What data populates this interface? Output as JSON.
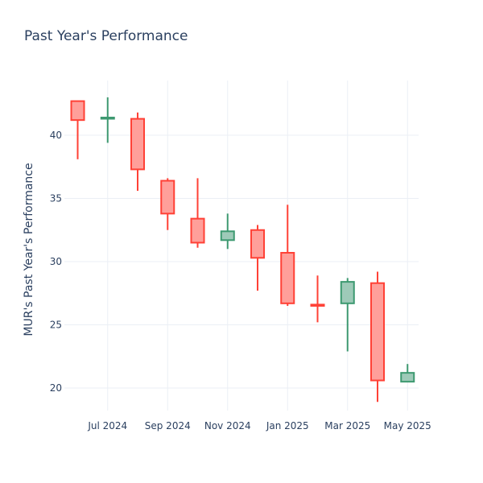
{
  "chart_data": {
    "type": "candlestick",
    "title": "Past Year's Performance",
    "xlabel": "",
    "ylabel": "MUR's Past Year's Performance",
    "ylim": [
      17.5,
      45
    ],
    "yticks": [
      20,
      25,
      30,
      35,
      40
    ],
    "xticks": [
      "Jul 2024",
      "Sep 2024",
      "Nov 2024",
      "Jan 2025",
      "Mar 2025",
      "May 2025"
    ],
    "grid": true,
    "legend": false,
    "colors": {
      "increasing_line": "#3d9970",
      "increasing_fill": "#9ecab8",
      "decreasing_line": "#ff4136",
      "decreasing_fill": "#ff9f9a",
      "grid": "#ebeff5",
      "text": "#2a3f5f"
    },
    "candles": [
      {
        "period": "2024-06",
        "open": 42.7,
        "high": 42.7,
        "low": 38.1,
        "close": 41.2
      },
      {
        "period": "2024-07",
        "open": 41.4,
        "high": 43.0,
        "low": 39.4,
        "close": 41.4
      },
      {
        "period": "2024-08",
        "open": 41.3,
        "high": 41.8,
        "low": 35.6,
        "close": 37.3
      },
      {
        "period": "2024-09",
        "open": 36.4,
        "high": 36.6,
        "low": 32.5,
        "close": 33.8
      },
      {
        "period": "2024-10",
        "open": 33.4,
        "high": 36.6,
        "low": 31.1,
        "close": 31.5
      },
      {
        "period": "2024-11",
        "open": 31.7,
        "high": 33.8,
        "low": 31.0,
        "close": 32.4
      },
      {
        "period": "2024-12",
        "open": 32.5,
        "high": 32.9,
        "low": 27.7,
        "close": 30.3
      },
      {
        "period": "2025-01",
        "open": 30.7,
        "high": 34.5,
        "low": 26.5,
        "close": 26.7
      },
      {
        "period": "2025-02",
        "open": 26.6,
        "high": 28.9,
        "low": 25.2,
        "close": 26.5
      },
      {
        "period": "2025-03",
        "open": 26.7,
        "high": 28.7,
        "low": 22.9,
        "close": 28.4
      },
      {
        "period": "2025-04",
        "open": 28.3,
        "high": 29.2,
        "low": 18.9,
        "close": 20.6
      },
      {
        "period": "2025-05",
        "open": 20.5,
        "high": 21.9,
        "low": 20.5,
        "close": 21.2
      }
    ]
  }
}
